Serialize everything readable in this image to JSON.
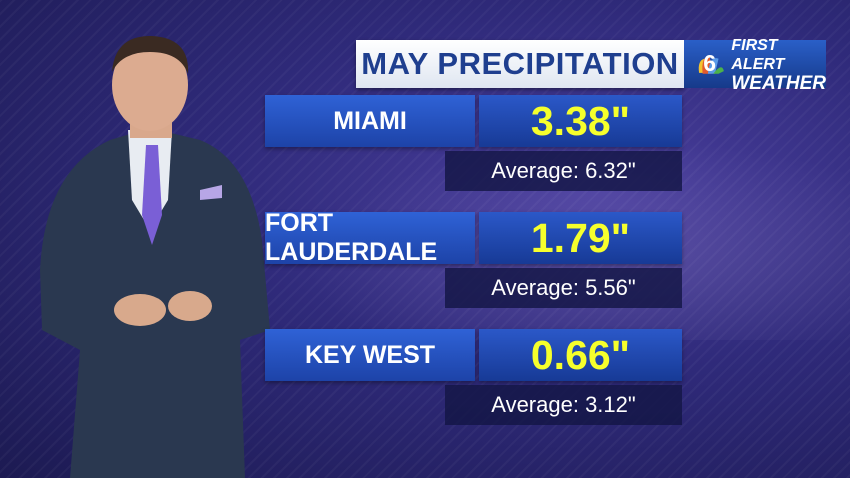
{
  "title": "MAY PRECIPITATION",
  "logo": {
    "line1": "FIRST ALERT",
    "line2": "WEATHER",
    "channel": "6"
  },
  "rows": [
    {
      "city": "MIAMI",
      "value": "3.38\"",
      "average": "Average: 6.32\""
    },
    {
      "city": "FORT LAUDERDALE",
      "value": "1.79\"",
      "average": "Average: 5.56\""
    },
    {
      "city": "KEY WEST",
      "value": "0.66\"",
      "average": "Average: 3.12\""
    }
  ],
  "colors": {
    "value_text": "#f6ff2c",
    "title_text": "#1f3f8f",
    "panel_blue": "#2b58c8"
  }
}
